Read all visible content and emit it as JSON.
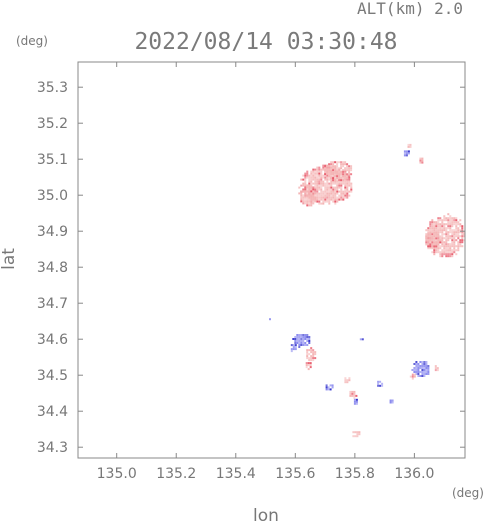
{
  "altitude_label": "ALT(km) 2.0",
  "timestamp": "2022/08/14 03:30:48",
  "unit_label_y": "(deg)",
  "unit_label_x": "(deg)",
  "x_axis_label": "lon",
  "y_axis_label": "lat",
  "colors": {
    "axis_frame": "#888888",
    "text": "#777777",
    "positive_echo": "#f4b4b4",
    "positive_echo_strong": "#e85a6a",
    "negative_echo": "#8888ee",
    "negative_echo_strong": "#3333cc"
  },
  "chart_data": {
    "type": "heatmap",
    "title": "2022/08/14 03:30:48",
    "subtitle": "ALT(km) 2.0",
    "xlabel": "lon",
    "ylabel": "lat",
    "x_unit": "(deg)",
    "y_unit": "(deg)",
    "xlim": [
      134.87,
      136.17
    ],
    "ylim": [
      34.27,
      35.37
    ],
    "x_ticks": [
      135.0,
      135.2,
      135.4,
      135.6,
      135.8,
      136.0
    ],
    "x_tick_labels": [
      "135.0",
      "135.2",
      "135.4",
      "135.6",
      "135.8",
      "136.0"
    ],
    "y_ticks": [
      34.3,
      34.4,
      34.5,
      34.6,
      34.7,
      34.8,
      34.9,
      35.0,
      35.1,
      35.2,
      35.3
    ],
    "y_tick_labels": [
      "34.3",
      "34.4",
      "34.5",
      "34.6",
      "34.7",
      "34.8",
      "34.9",
      "35.0",
      "35.1",
      "35.2",
      "35.3"
    ],
    "grid": false,
    "echo_regions": [
      {
        "lon": 135.7,
        "lat": 35.03,
        "rx": 0.09,
        "ry": 0.055,
        "polarity": "positive",
        "intensity": 0.35
      },
      {
        "lon": 135.74,
        "lat": 35.07,
        "rx": 0.05,
        "ry": 0.03,
        "polarity": "positive",
        "intensity": 0.3
      },
      {
        "lon": 135.64,
        "lat": 35.0,
        "rx": 0.03,
        "ry": 0.03,
        "polarity": "positive",
        "intensity": 0.3
      },
      {
        "lon": 136.1,
        "lat": 34.89,
        "rx": 0.07,
        "ry": 0.06,
        "polarity": "positive",
        "intensity": 0.45
      },
      {
        "lon": 136.06,
        "lat": 34.88,
        "rx": 0.03,
        "ry": 0.025,
        "polarity": "positive",
        "intensity": 0.6
      },
      {
        "lon": 135.97,
        "lat": 35.12,
        "rx": 0.012,
        "ry": 0.01,
        "polarity": "negative",
        "intensity": 0.6
      },
      {
        "lon": 136.02,
        "lat": 35.1,
        "rx": 0.01,
        "ry": 0.01,
        "polarity": "positive",
        "intensity": 0.8
      },
      {
        "lon": 135.98,
        "lat": 35.14,
        "rx": 0.01,
        "ry": 0.008,
        "polarity": "positive",
        "intensity": 0.6
      },
      {
        "lon": 135.62,
        "lat": 34.6,
        "rx": 0.03,
        "ry": 0.02,
        "polarity": "negative",
        "intensity": 0.6
      },
      {
        "lon": 135.65,
        "lat": 34.56,
        "rx": 0.02,
        "ry": 0.018,
        "polarity": "positive",
        "intensity": 0.6
      },
      {
        "lon": 135.64,
        "lat": 34.53,
        "rx": 0.012,
        "ry": 0.012,
        "polarity": "positive",
        "intensity": 0.5
      },
      {
        "lon": 135.59,
        "lat": 34.58,
        "rx": 0.012,
        "ry": 0.012,
        "polarity": "negative",
        "intensity": 0.7
      },
      {
        "lon": 135.82,
        "lat": 34.6,
        "rx": 0.01,
        "ry": 0.008,
        "polarity": "negative",
        "intensity": 0.6
      },
      {
        "lon": 135.71,
        "lat": 34.47,
        "rx": 0.015,
        "ry": 0.01,
        "polarity": "negative",
        "intensity": 0.6
      },
      {
        "lon": 135.77,
        "lat": 34.49,
        "rx": 0.012,
        "ry": 0.01,
        "polarity": "positive",
        "intensity": 0.6
      },
      {
        "lon": 135.79,
        "lat": 34.45,
        "rx": 0.015,
        "ry": 0.012,
        "polarity": "positive",
        "intensity": 0.6
      },
      {
        "lon": 135.8,
        "lat": 34.43,
        "rx": 0.01,
        "ry": 0.01,
        "polarity": "negative",
        "intensity": 0.6
      },
      {
        "lon": 135.88,
        "lat": 34.48,
        "rx": 0.012,
        "ry": 0.01,
        "polarity": "negative",
        "intensity": 0.7
      },
      {
        "lon": 135.92,
        "lat": 34.43,
        "rx": 0.01,
        "ry": 0.008,
        "polarity": "negative",
        "intensity": 0.6
      },
      {
        "lon": 135.8,
        "lat": 34.34,
        "rx": 0.015,
        "ry": 0.01,
        "polarity": "positive",
        "intensity": 0.7
      },
      {
        "lon": 136.02,
        "lat": 34.52,
        "rx": 0.03,
        "ry": 0.025,
        "polarity": "negative",
        "intensity": 0.6
      },
      {
        "lon": 135.99,
        "lat": 34.5,
        "rx": 0.012,
        "ry": 0.01,
        "polarity": "positive",
        "intensity": 0.6
      },
      {
        "lon": 136.07,
        "lat": 34.52,
        "rx": 0.008,
        "ry": 0.008,
        "polarity": "positive",
        "intensity": 0.9
      },
      {
        "lon": 135.51,
        "lat": 34.66,
        "rx": 0.005,
        "ry": 0.004,
        "polarity": "negative",
        "intensity": 0.7
      }
    ]
  }
}
